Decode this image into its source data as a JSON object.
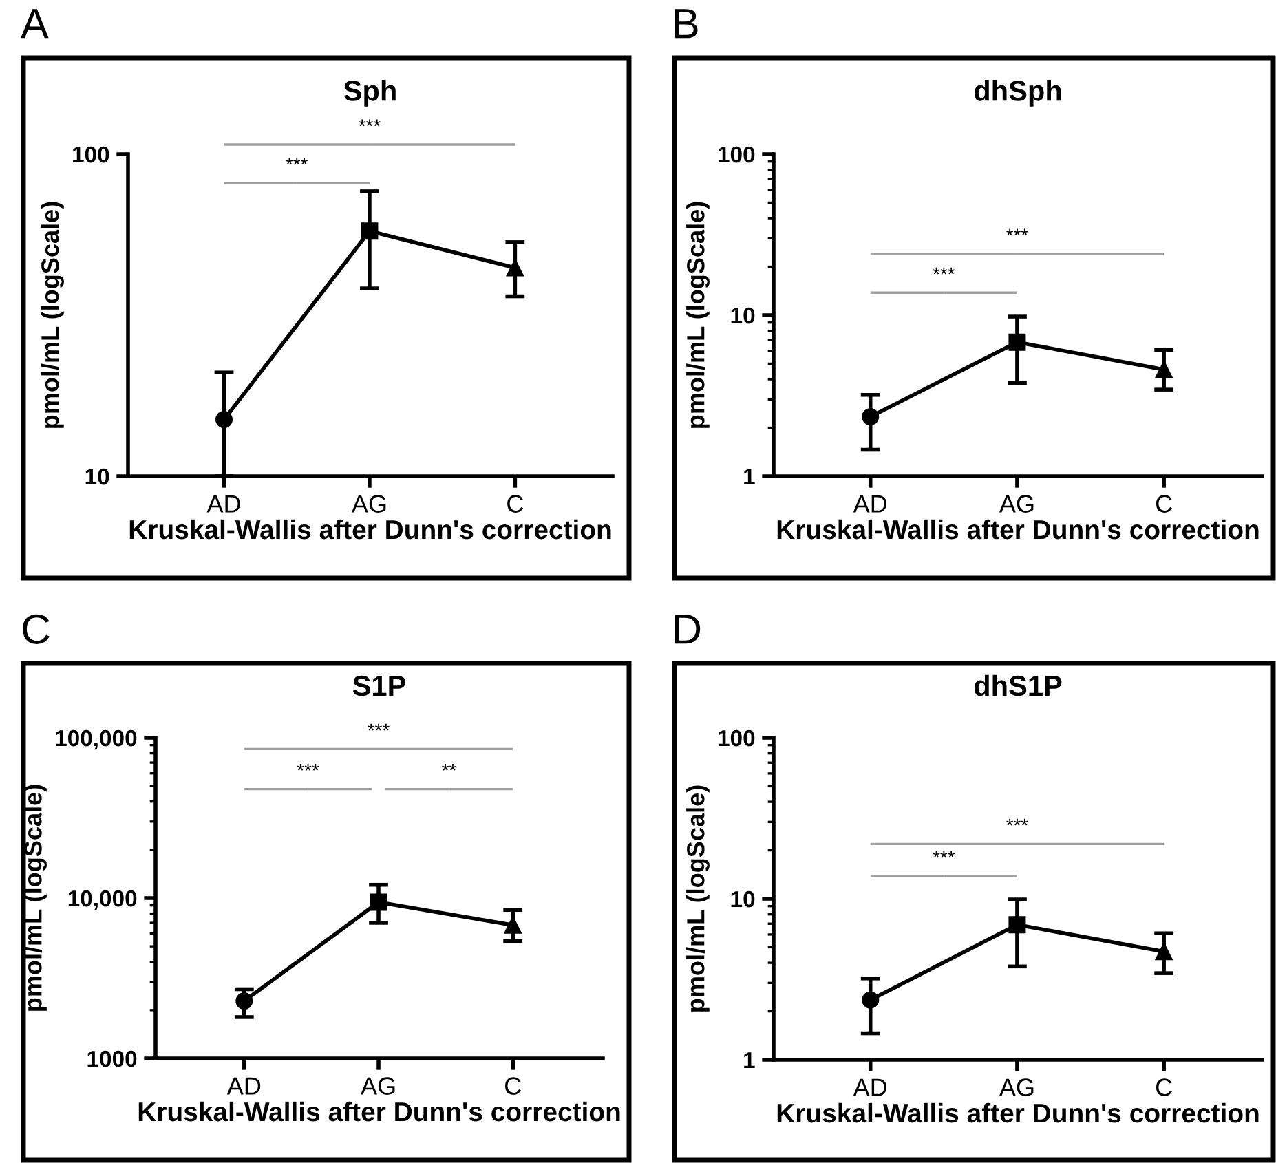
{
  "chart_data": [
    {
      "type": "line",
      "title": "Sph",
      "xlabel": "Kruskal-Wallis after Dunn's correction",
      "ylabel": "pmol/mL (logScale)",
      "categories": [
        "AD",
        "AG",
        "C"
      ],
      "log": true,
      "ylim": [
        10,
        100
      ],
      "yticks": [
        10,
        100
      ],
      "grid": false,
      "legend": false,
      "line_style": "solid",
      "annotations": [
        "A",
        "***",
        "***"
      ],
      "series": [
        {
          "color": "#000000",
          "marker": [
            "circle",
            "square",
            "triangle"
          ],
          "values": [
            15.0,
            57.7,
            44.4
          ],
          "errors": [
            [
              10,
              21
            ],
            [
              38.3,
              76.7
            ],
            [
              36.2,
              53.3
            ]
          ]
        }
      ]
    },
    {
      "type": "line",
      "title": "dhSph",
      "xlabel": "Kruskal-Wallis after Dunn's correction",
      "ylabel": "pmol/mL (logScale)",
      "categories": [
        "AD",
        "AG",
        "C"
      ],
      "log": true,
      "ylim": [
        1,
        100
      ],
      "yticks": [
        1,
        10,
        100
      ],
      "grid": false,
      "legend": false,
      "line_style": "solid",
      "annotations": [
        "B",
        "***",
        "***"
      ],
      "series": [
        {
          "color": "#000000",
          "marker": [
            "circle",
            "square",
            "triangle"
          ],
          "values": [
            2.34,
            6.8,
            4.6
          ],
          "errors": [
            [
              1.46,
              3.2
            ],
            [
              3.8,
              9.8
            ],
            [
              3.45,
              6.1
            ]
          ]
        }
      ]
    },
    {
      "type": "line",
      "title": "S1P",
      "xlabel": "Kruskal-Wallis after Dunn's correction",
      "ylabel": "pmol/mL (logScale)",
      "categories": [
        "AD",
        "AG",
        "C"
      ],
      "log": true,
      "ylim": [
        1000,
        100000
      ],
      "yticks": [
        1000,
        {
          "value": 10000,
          "label": "10,000"
        },
        {
          "value": 100000,
          "label": "100,000"
        }
      ],
      "grid": false,
      "legend": false,
      "line_style": "solid",
      "annotations": [
        "C",
        "***",
        "***",
        "**"
      ],
      "series": [
        {
          "color": "#000000",
          "marker": [
            "circle",
            "square",
            "triangle"
          ],
          "values": [
            2280,
            9420,
            6780
          ],
          "errors": [
            [
              1810,
              2700
            ],
            [
              7010,
              12100
            ],
            [
              5390,
              8430
            ]
          ]
        }
      ]
    },
    {
      "type": "line",
      "title": "dhS1P",
      "xlabel": "Kruskal-Wallis after Dunn's correction",
      "ylabel": "pmol/mL (logScale)",
      "categories": [
        "AD",
        "AG",
        "C"
      ],
      "log": true,
      "ylim": [
        1,
        100
      ],
      "yticks": [
        1,
        10,
        100
      ],
      "grid": false,
      "legend": false,
      "line_style": "solid",
      "annotations": [
        "D",
        "***",
        "***"
      ],
      "series": [
        {
          "color": "#000000",
          "marker": [
            "circle",
            "square",
            "triangle"
          ],
          "values": [
            2.35,
            6.9,
            4.7
          ],
          "errors": [
            [
              1.46,
              3.2
            ],
            [
              3.8,
              9.9
            ],
            [
              3.45,
              6.1
            ]
          ]
        }
      ]
    }
  ]
}
